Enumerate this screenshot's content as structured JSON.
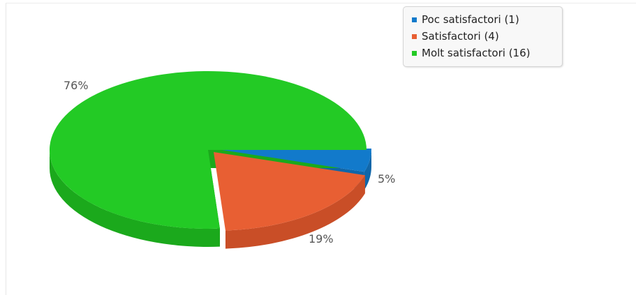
{
  "chart_data": {
    "type": "pie",
    "title": "",
    "three_d": true,
    "exploded": true,
    "legend_position": "top-right",
    "slices": [
      {
        "label": "Poc satisfactori",
        "legend": "Poc satisfactori (1)",
        "count": 1,
        "percent_label": "5%",
        "color": "#127ACB",
        "side_color": "#0F66A9"
      },
      {
        "label": "Satisfactori",
        "legend": "Satisfactori (4)",
        "count": 4,
        "percent_label": "19%",
        "color": "#E85F33",
        "side_color": "#C94E27"
      },
      {
        "label": "Molt satisfactori",
        "legend": "Molt satisfactori (16)",
        "count": 16,
        "percent_label": "76%",
        "color": "#23CA25",
        "side_color": "#1BA91C"
      }
    ]
  }
}
